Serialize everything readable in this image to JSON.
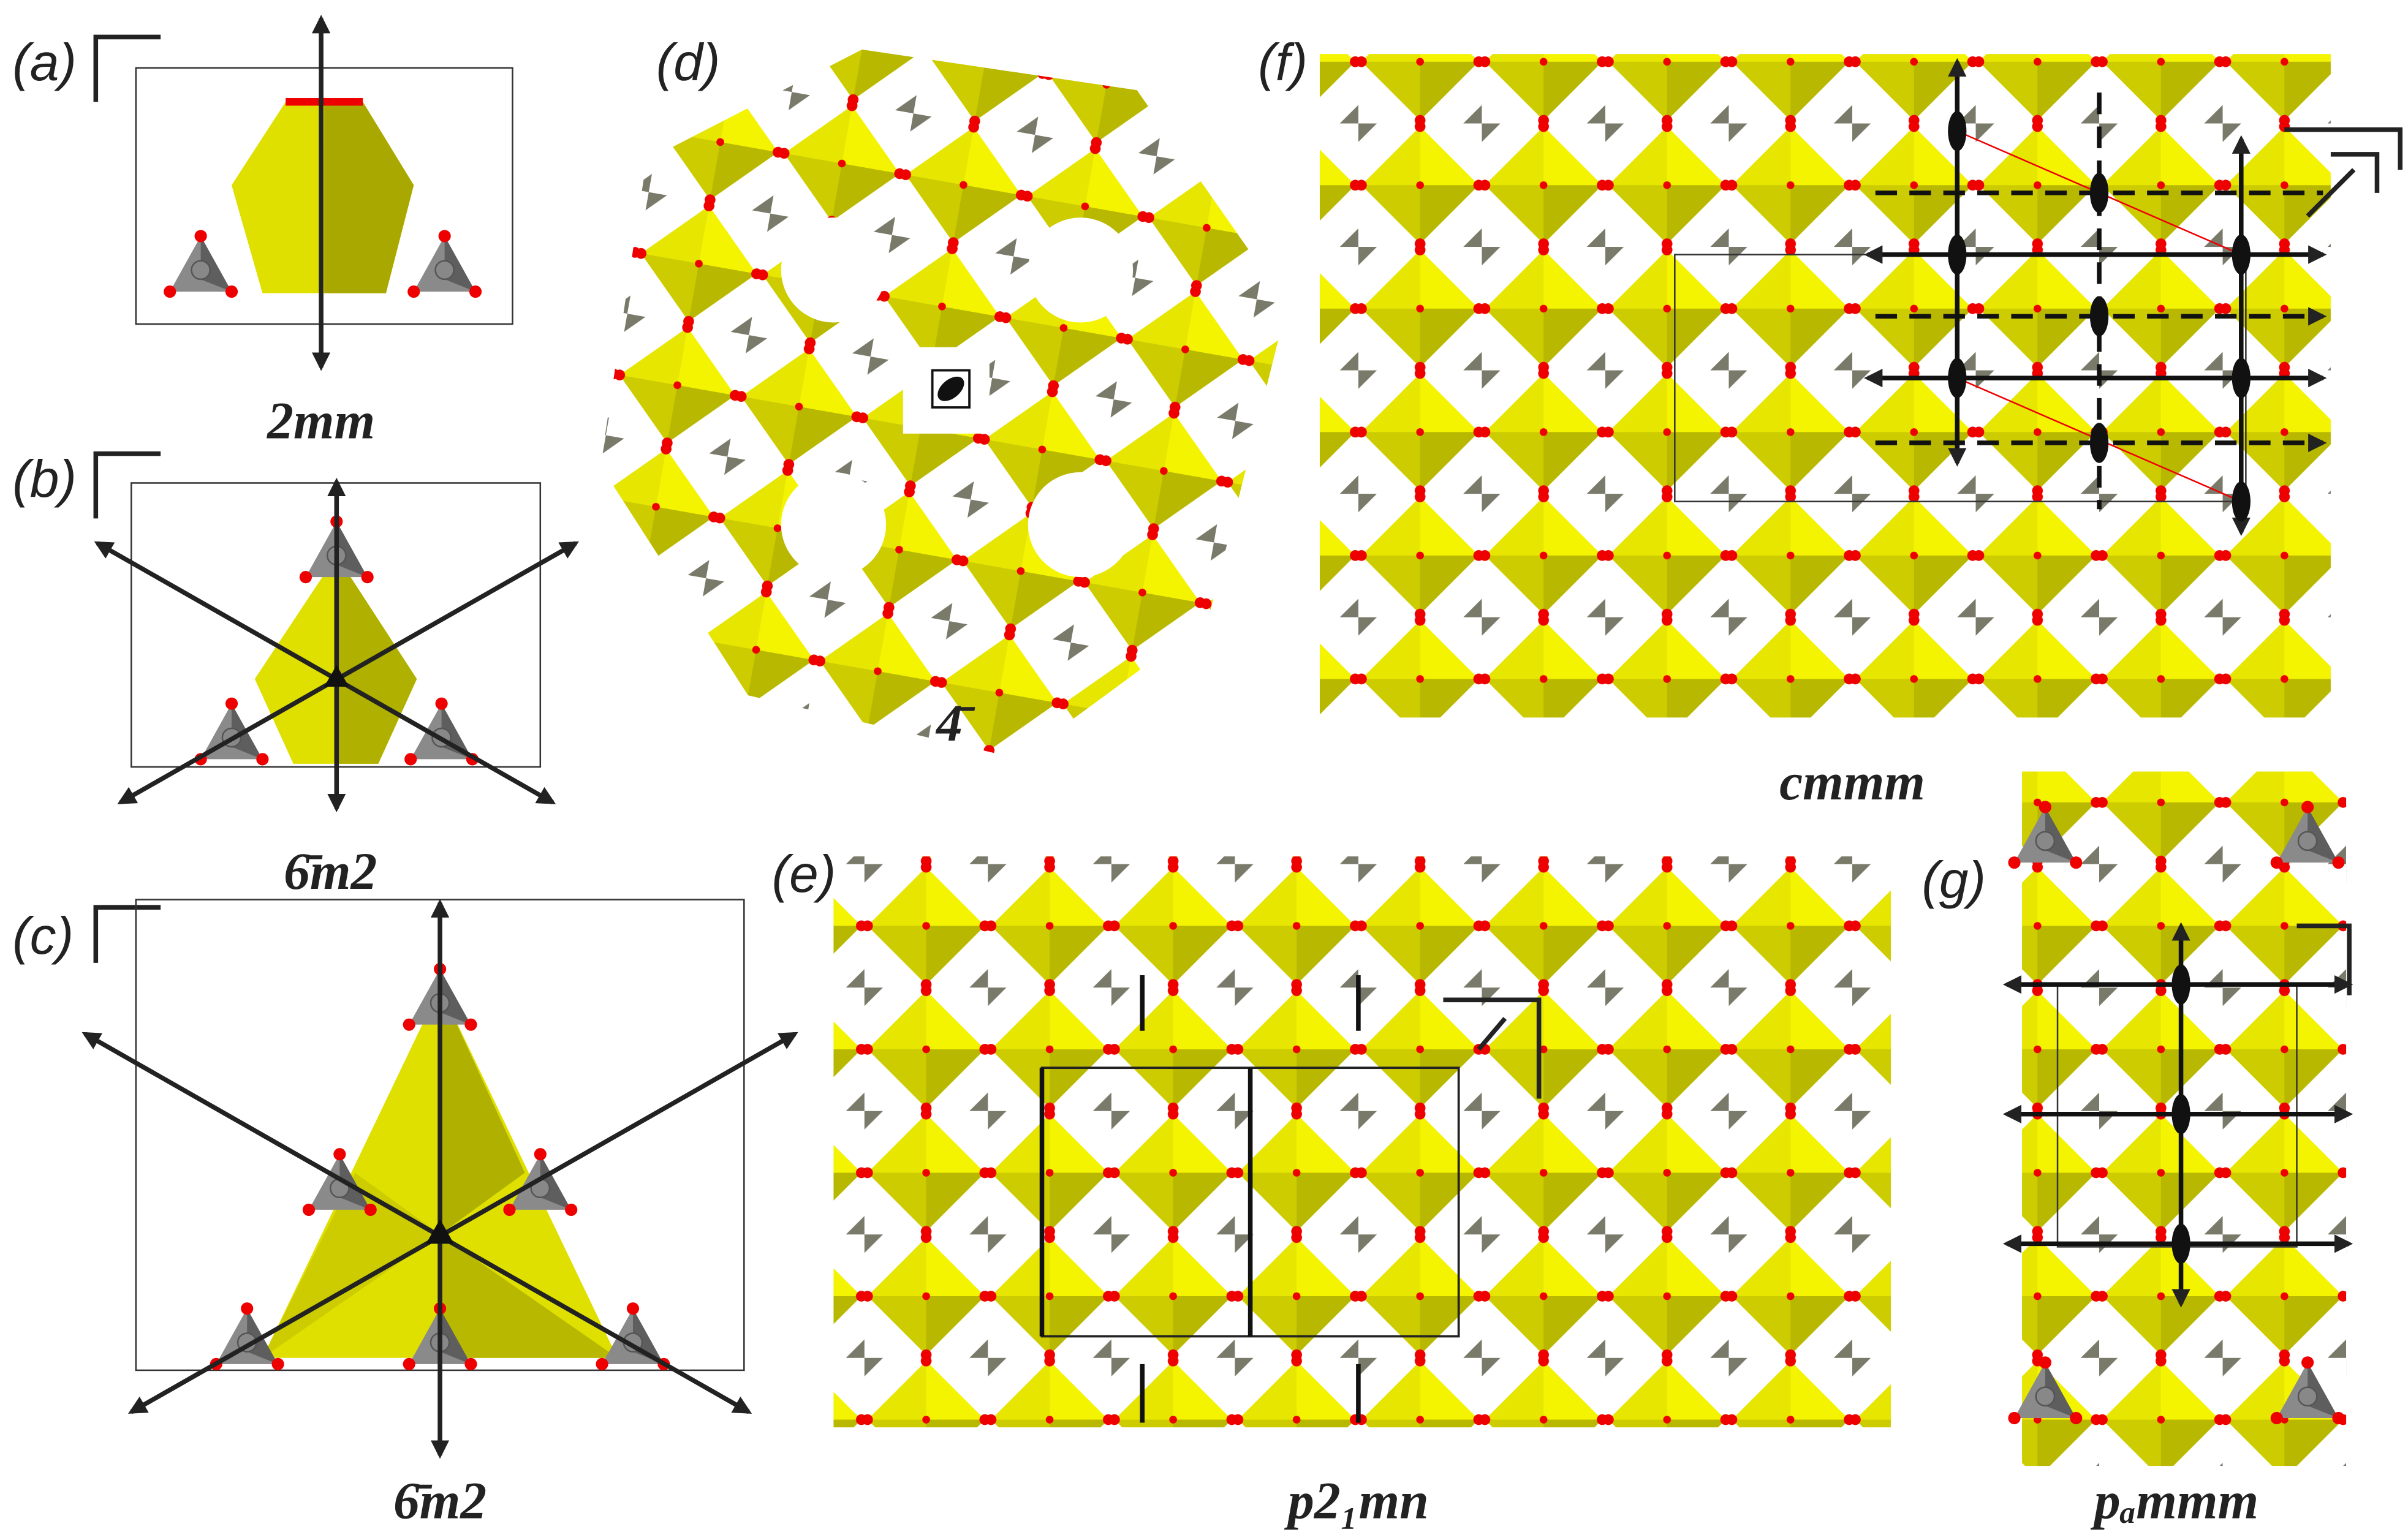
{
  "panels": [
    {
      "label": "(a)",
      "symbol": "2mm"
    },
    {
      "label": "(b)",
      "symbol": "6̄m2"
    },
    {
      "label": "(c)",
      "symbol": "6̄m2"
    },
    {
      "label": "(d)",
      "symbol": "4̄"
    },
    {
      "label": "(e)",
      "symbol": "p2₁mn"
    },
    {
      "label": "(f)",
      "symbol": "cmmm"
    },
    {
      "label": "(g)",
      "symbol": "pₐmmm"
    }
  ]
}
